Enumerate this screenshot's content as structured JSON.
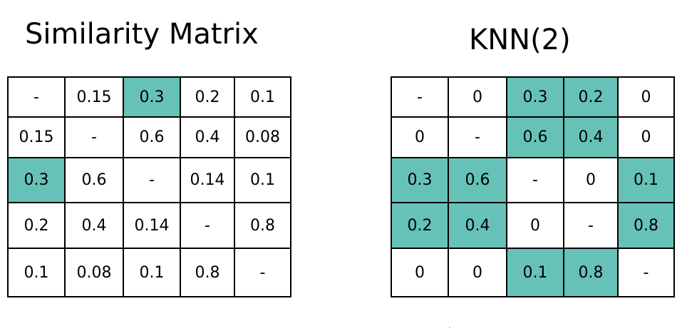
{
  "left": {
    "title": "Similarity Matrix",
    "rows": [
      [
        "-",
        "0.15",
        "0.3",
        "0.2",
        "0.1"
      ],
      [
        "0.15",
        "-",
        "0.6",
        "0.4",
        "0.08"
      ],
      [
        "0.3",
        "0.6",
        "-",
        "0.14",
        "0.1"
      ],
      [
        "0.2",
        "0.4",
        "0.14",
        "-",
        "0.8"
      ],
      [
        "0.1",
        "0.08",
        "0.1",
        "0.8",
        "-"
      ]
    ],
    "highlighted": [
      [
        0,
        2
      ],
      [
        2,
        0
      ]
    ]
  },
  "right": {
    "title": "KNN(2)",
    "rows": [
      [
        "-",
        "0",
        "0.3",
        "0.2",
        "0"
      ],
      [
        "0",
        "-",
        "0.6",
        "0.4",
        "0"
      ],
      [
        "0.3",
        "0.6",
        "-",
        "0",
        "0.1"
      ],
      [
        "0.2",
        "0.4",
        "0",
        "-",
        "0.8"
      ],
      [
        "0",
        "0",
        "0.1",
        "0.8",
        "-"
      ]
    ],
    "highlighted": [
      [
        0,
        2
      ],
      [
        0,
        3
      ],
      [
        1,
        2
      ],
      [
        1,
        3
      ],
      [
        2,
        0
      ],
      [
        2,
        1
      ],
      [
        2,
        4
      ],
      [
        3,
        0
      ],
      [
        3,
        1
      ],
      [
        3,
        4
      ],
      [
        4,
        2
      ],
      [
        4,
        3
      ]
    ]
  },
  "colors": {
    "highlight": "#66c2b7",
    "border": "#000000"
  }
}
